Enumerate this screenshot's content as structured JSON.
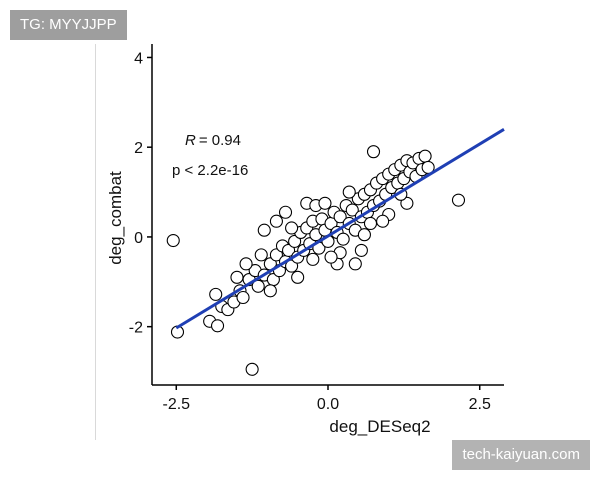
{
  "overlay": {
    "tag_label": "TG: MYYJJPP",
    "watermark": "tech-kaiyuan.com"
  },
  "chart_data": {
    "type": "scatter",
    "title": "",
    "xlabel": "deg_DESeq2",
    "ylabel": "deg_combat",
    "xlim": [
      -2.9,
      2.9
    ],
    "ylim": [
      -3.3,
      4.3
    ],
    "xticks": [
      -2.5,
      0.0,
      2.5
    ],
    "xtick_labels": [
      "-2.5",
      "0.0",
      "2.5"
    ],
    "yticks": [
      -2,
      0,
      2,
      4
    ],
    "ytick_labels": [
      "-2",
      "0",
      "2",
      "4"
    ],
    "grid": false,
    "annotations": {
      "r_symbol": "R",
      "r_value": "= 0.94",
      "p_text": "p < 2.2e-16"
    },
    "regression": {
      "slope": 0.82,
      "intercept": 0.02,
      "color": "#1f3fb4"
    },
    "point_style": {
      "fill": "#ffffff",
      "stroke": "#000000"
    },
    "series": [
      {
        "points": [
          [
            -2.55,
            -0.08
          ],
          [
            -2.48,
            -2.12
          ],
          [
            -1.95,
            -1.88
          ],
          [
            -1.82,
            -1.98
          ],
          [
            -1.85,
            -1.28
          ],
          [
            -1.25,
            -2.95
          ],
          [
            2.15,
            0.82
          ],
          [
            -1.05,
            0.15
          ],
          [
            -1.75,
            -1.55
          ],
          [
            -1.65,
            -1.62
          ],
          [
            -1.55,
            -1.45
          ],
          [
            -1.45,
            -1.2
          ],
          [
            -1.4,
            -1.35
          ],
          [
            -1.3,
            -0.95
          ],
          [
            -1.2,
            -0.75
          ],
          [
            -1.15,
            -1.1
          ],
          [
            -1.05,
            -0.85
          ],
          [
            -0.95,
            -0.6
          ],
          [
            -0.9,
            -0.95
          ],
          [
            -0.85,
            -0.4
          ],
          [
            -0.8,
            -0.75
          ],
          [
            -0.75,
            -0.2
          ],
          [
            -0.7,
            -0.55
          ],
          [
            -0.65,
            -0.3
          ],
          [
            -0.6,
            -0.65
          ],
          [
            -0.55,
            -0.1
          ],
          [
            -0.5,
            -0.45
          ],
          [
            -0.45,
            0.1
          ],
          [
            -0.4,
            -0.3
          ],
          [
            -0.35,
            0.2
          ],
          [
            -0.3,
            -0.15
          ],
          [
            -0.25,
            0.35
          ],
          [
            -0.2,
            0.05
          ],
          [
            -0.15,
            -0.25
          ],
          [
            -0.1,
            0.4
          ],
          [
            -0.05,
            0.15
          ],
          [
            0.0,
            -0.1
          ],
          [
            0.05,
            0.3
          ],
          [
            0.1,
            0.55
          ],
          [
            0.15,
            0.1
          ],
          [
            0.2,
            0.45
          ],
          [
            0.25,
            -0.05
          ],
          [
            0.3,
            0.7
          ],
          [
            0.35,
            0.3
          ],
          [
            0.4,
            0.6
          ],
          [
            0.45,
            0.15
          ],
          [
            0.5,
            0.85
          ],
          [
            0.55,
            0.45
          ],
          [
            0.6,
            0.95
          ],
          [
            0.65,
            0.55
          ],
          [
            0.7,
            1.05
          ],
          [
            0.75,
            0.7
          ],
          [
            0.8,
            1.2
          ],
          [
            0.85,
            0.8
          ],
          [
            0.9,
            1.3
          ],
          [
            0.95,
            0.95
          ],
          [
            1.0,
            1.4
          ],
          [
            1.05,
            1.1
          ],
          [
            1.1,
            1.5
          ],
          [
            1.15,
            1.2
          ],
          [
            1.2,
            1.6
          ],
          [
            1.25,
            1.3
          ],
          [
            1.3,
            1.7
          ],
          [
            1.35,
            1.45
          ],
          [
            1.4,
            1.65
          ],
          [
            1.45,
            1.35
          ],
          [
            1.5,
            1.75
          ],
          [
            1.55,
            1.5
          ],
          [
            1.6,
            1.8
          ],
          [
            1.65,
            1.55
          ],
          [
            0.75,
            1.9
          ],
          [
            1.3,
            0.75
          ],
          [
            -0.35,
            0.75
          ],
          [
            0.45,
            -0.6
          ],
          [
            -0.85,
            0.35
          ],
          [
            0.15,
            -0.6
          ],
          [
            -0.2,
            0.7
          ],
          [
            0.6,
            0.05
          ],
          [
            -0.6,
            0.2
          ],
          [
            1.0,
            0.5
          ],
          [
            -1.1,
            -0.4
          ],
          [
            -0.95,
            -1.2
          ],
          [
            -1.35,
            -0.6
          ],
          [
            -0.5,
            -0.9
          ],
          [
            0.2,
            -0.35
          ],
          [
            0.35,
            1.0
          ],
          [
            1.2,
            0.95
          ],
          [
            -0.7,
            0.55
          ],
          [
            0.55,
            -0.3
          ],
          [
            -0.25,
            -0.5
          ],
          [
            0.9,
            0.35
          ],
          [
            -1.5,
            -0.9
          ],
          [
            -0.05,
            0.75
          ],
          [
            0.05,
            -0.45
          ],
          [
            0.7,
            0.3
          ]
        ]
      }
    ]
  }
}
